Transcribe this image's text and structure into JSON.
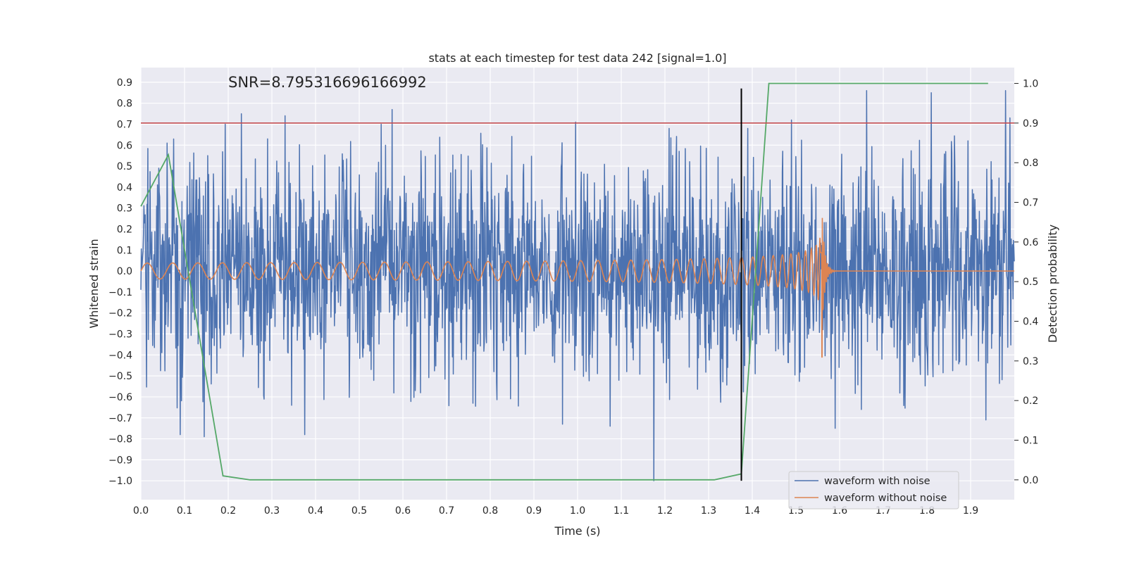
{
  "chart_data": {
    "type": "line",
    "title": "stats at each timestep for test data 242 [signal=1.0]",
    "xlabel": "Time (s)",
    "ylabel": "Whitened strain",
    "y2label": "Detection probability",
    "annotation": "SNR=8.795316696166992",
    "xlim": [
      0.0,
      2.0
    ],
    "ylim": [
      -1.09,
      0.97
    ],
    "y2lim": [
      -0.05,
      1.04
    ],
    "xticks": [
      "0.0",
      "0.1",
      "0.2",
      "0.3",
      "0.4",
      "0.5",
      "0.6",
      "0.7",
      "0.8",
      "0.9",
      "1.0",
      "1.1",
      "1.2",
      "1.3",
      "1.4",
      "1.5",
      "1.6",
      "1.7",
      "1.8",
      "1.9"
    ],
    "yticks": [
      "0.9",
      "0.8",
      "0.7",
      "0.6",
      "0.5",
      "0.4",
      "0.3",
      "0.2",
      "0.1",
      "0.0",
      "−0.1",
      "−0.2",
      "−0.3",
      "−0.4",
      "−0.5",
      "−0.6",
      "−0.7",
      "−0.8",
      "−0.9",
      "−1.0"
    ],
    "y2ticks": [
      "1.0",
      "0.9",
      "0.8",
      "0.7",
      "0.6",
      "0.5",
      "0.4",
      "0.3",
      "0.2",
      "0.1",
      "0.0"
    ],
    "threshold": {
      "y2": 0.9,
      "color": "#c44e52"
    },
    "detection_time": {
      "x": 1.375,
      "y_from": -1.0,
      "y_to": 0.87,
      "color": "#000000"
    },
    "legend": {
      "position": "lower-right",
      "entries": [
        "waveform with noise",
        "waveform without noise"
      ]
    },
    "series": [
      {
        "name": "waveform with noise",
        "axis": "left",
        "color": "#4c72b0",
        "x_range": [
          0.0,
          2.0
        ],
        "n_samples": 2000,
        "amplitude_std": 0.26,
        "peaks": [
          [
            0.06,
            0.61
          ],
          [
            0.09,
            -0.78
          ],
          [
            0.145,
            -0.79
          ],
          [
            0.193,
            0.7
          ],
          [
            0.23,
            0.75
          ],
          [
            0.29,
            0.63
          ],
          [
            0.33,
            0.74
          ],
          [
            0.375,
            -0.78
          ],
          [
            0.55,
            0.7
          ],
          [
            0.575,
            0.77
          ],
          [
            0.965,
            -0.73
          ],
          [
            0.995,
            0.71
          ],
          [
            1.075,
            -0.74
          ],
          [
            1.175,
            -1.0
          ],
          [
            1.21,
            0.68
          ],
          [
            1.39,
            0.68
          ],
          [
            1.49,
            0.72
          ],
          [
            1.59,
            -0.75
          ],
          [
            1.65,
            -0.66
          ],
          [
            1.662,
            0.86
          ],
          [
            1.81,
            0.85
          ],
          [
            1.98,
            0.86
          ],
          [
            1.99,
            0.73
          ],
          [
            1.935,
            -0.71
          ]
        ]
      },
      {
        "name": "waveform without noise",
        "axis": "left",
        "color": "#dd8452",
        "x_range": [
          0.0,
          2.0
        ],
        "chirp": {
          "f0": 17,
          "t_merger": 1.56,
          "amp0": 0.038,
          "peak_amp": 0.28,
          "trough": -0.41,
          "ringdown_end": 1.585
        }
      },
      {
        "name": "detection probability",
        "axis": "right",
        "color": "#55a868",
        "x": [
          0.0,
          0.063,
          0.188,
          0.25,
          1.0,
          1.188,
          1.313,
          1.375,
          1.438,
          1.5,
          1.94
        ],
        "y": [
          0.69,
          0.82,
          0.01,
          0.0,
          0.0,
          0.0,
          0.0,
          0.015,
          1.0,
          1.0,
          1.0
        ]
      }
    ]
  }
}
